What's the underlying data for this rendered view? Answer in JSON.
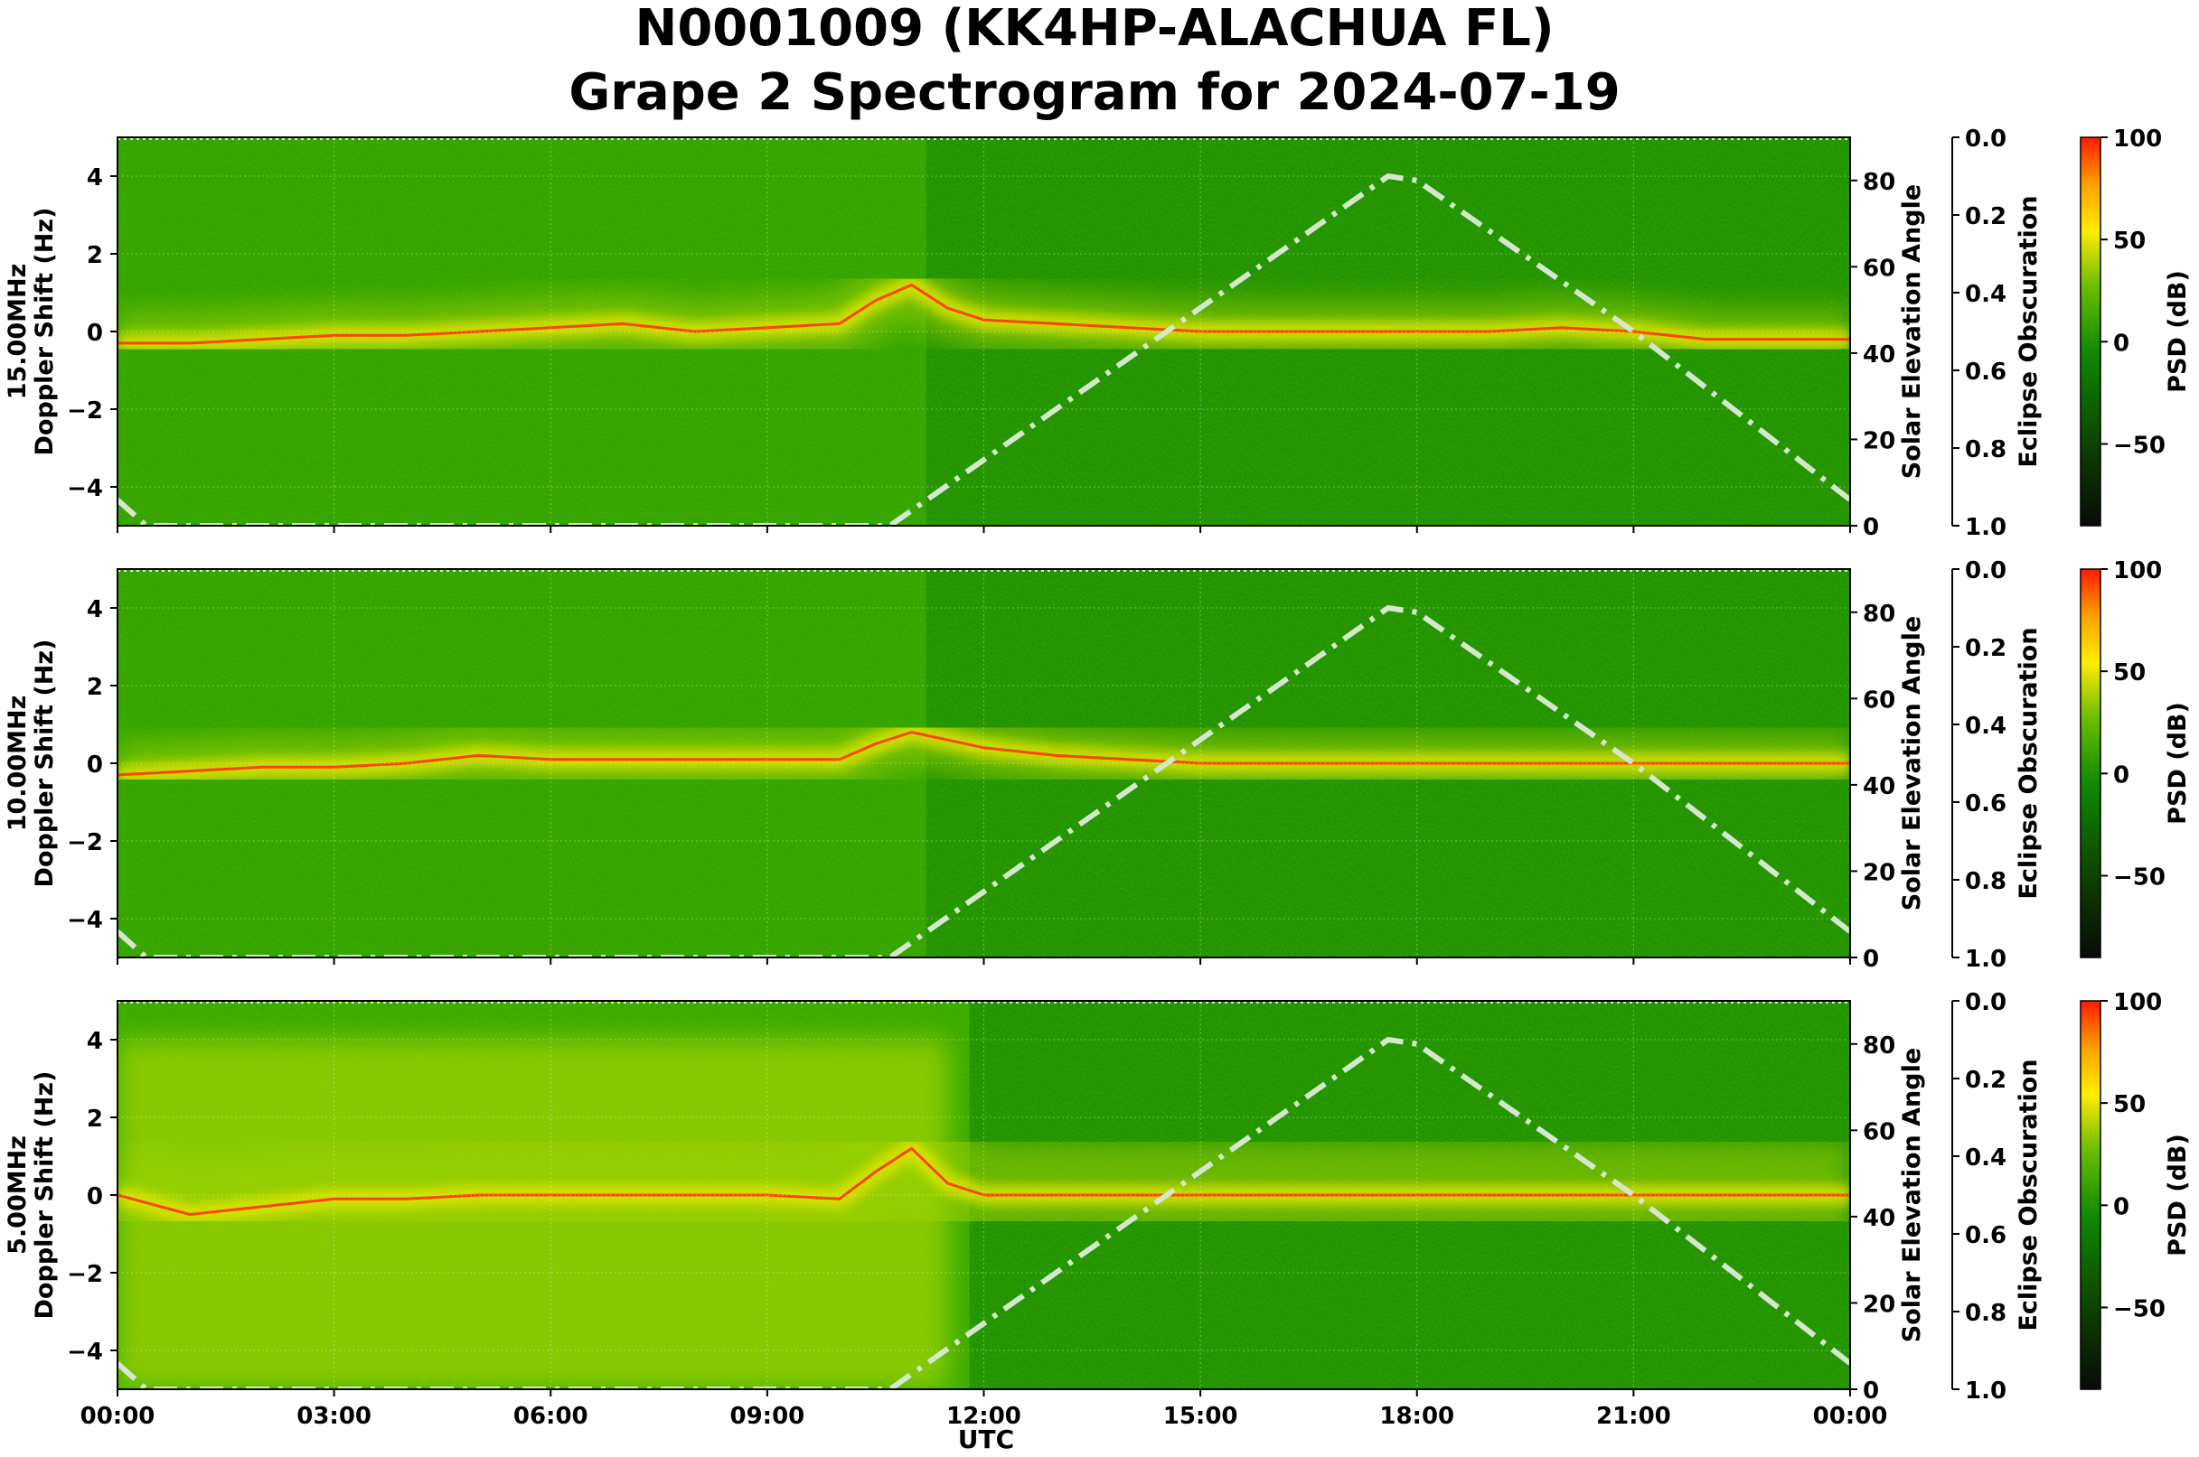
{
  "title_line1": "N0001009 (KK4HP-ALACHUA FL)",
  "title_line2": "Grape 2 Spectrogram for 2024-07-19",
  "xlabel": "UTC",
  "x_ticks": [
    "00:00",
    "03:00",
    "06:00",
    "09:00",
    "12:00",
    "15:00",
    "18:00",
    "21:00",
    "00:00"
  ],
  "y_ticks": [
    "4",
    "2",
    "0",
    "−2",
    "−4"
  ],
  "elev_ticks": [
    "80",
    "60",
    "40",
    "20",
    "0"
  ],
  "obsc_ticks": [
    "0.0",
    "0.2",
    "0.4",
    "0.6",
    "0.8",
    "1.0"
  ],
  "cbar_ticks": [
    "100",
    "50",
    "0",
    "−50"
  ],
  "right_label_elev": "Solar Elevation Angle",
  "right_label_obsc": "Eclipse Obscuration",
  "cbar_label": "PSD (dB)",
  "colors": {
    "bg_green": "#118a00",
    "mid_green": "#2fa500",
    "yellow_green": "#9fd200",
    "yellow": "#e6e600",
    "orange_red": "#ff3300",
    "elevation_curve": "#d4e8d0",
    "cmap": [
      "#0a0a0a",
      "#0b3a00",
      "#118a00",
      "#6cc000",
      "#ffee00",
      "#ffa000",
      "#ff1a00"
    ]
  },
  "chart_data": [
    {
      "type": "heatmap",
      "ylabel_freq": "15.00MHz",
      "ylabel": "Doppler Shift (Hz)",
      "xlim_hours": [
        0,
        24
      ],
      "ylim": [
        -5,
        5
      ],
      "elev_lim": [
        0,
        90
      ],
      "obsc_lim": [
        0,
        1
      ],
      "cbar_lim": [
        -90,
        100
      ],
      "doppler_trace": {
        "x": [
          0,
          1,
          2,
          3,
          4,
          5,
          6,
          7,
          8,
          9,
          10,
          10.5,
          11,
          11.5,
          12,
          13,
          14,
          15,
          16,
          17,
          18,
          19,
          20,
          21,
          22,
          23,
          24
        ],
        "y": [
          -0.3,
          -0.3,
          -0.2,
          -0.1,
          -0.1,
          0.0,
          0.1,
          0.2,
          0.0,
          0.1,
          0.2,
          0.8,
          1.2,
          0.6,
          0.3,
          0.2,
          0.1,
          0.0,
          0.0,
          0.0,
          0.0,
          0.0,
          0.1,
          0.0,
          -0.2,
          -0.2,
          -0.2
        ]
      },
      "elevation_curve": {
        "x": [
          0,
          0.4,
          10.7,
          17.6,
          18.0,
          21.0,
          24
        ],
        "y": [
          6,
          0,
          0,
          81,
          80,
          45,
          6
        ]
      }
    },
    {
      "type": "heatmap",
      "ylabel_freq": "10.00MHz",
      "ylabel": "Doppler Shift (Hz)",
      "xlim_hours": [
        0,
        24
      ],
      "ylim": [
        -5,
        5
      ],
      "elev_lim": [
        0,
        90
      ],
      "obsc_lim": [
        0,
        1
      ],
      "cbar_lim": [
        -90,
        100
      ],
      "doppler_trace": {
        "x": [
          0,
          1,
          2,
          3,
          4,
          5,
          6,
          7,
          8,
          9,
          10,
          10.5,
          11,
          11.5,
          12,
          13,
          14,
          15,
          16,
          17,
          18,
          19,
          20,
          21,
          22,
          23,
          24
        ],
        "y": [
          -0.3,
          -0.2,
          -0.1,
          -0.1,
          0.0,
          0.2,
          0.1,
          0.1,
          0.1,
          0.1,
          0.1,
          0.5,
          0.8,
          0.6,
          0.4,
          0.2,
          0.1,
          0.0,
          0.0,
          0.0,
          0.0,
          0.0,
          0.0,
          0.0,
          0.0,
          0.0,
          0.0
        ]
      },
      "elevation_curve": {
        "x": [
          0,
          0.4,
          10.7,
          17.6,
          18.0,
          21.0,
          24
        ],
        "y": [
          6,
          0,
          0,
          81,
          80,
          45,
          6
        ]
      }
    },
    {
      "type": "heatmap",
      "ylabel_freq": "5.00MHz",
      "ylabel": "Doppler Shift (Hz)",
      "xlim_hours": [
        0,
        24
      ],
      "ylim": [
        -5,
        5
      ],
      "elev_lim": [
        0,
        90
      ],
      "obsc_lim": [
        0,
        1
      ],
      "cbar_lim": [
        -90,
        100
      ],
      "doppler_trace": {
        "x": [
          0,
          1,
          2,
          3,
          4,
          5,
          6,
          7,
          8,
          9,
          10,
          10.5,
          11,
          11.5,
          12,
          13,
          14,
          15,
          16,
          17,
          18,
          19,
          20,
          21,
          22,
          23,
          24
        ],
        "y": [
          0.0,
          -0.5,
          -0.3,
          -0.1,
          -0.1,
          0.0,
          0.0,
          0.0,
          0.0,
          0.0,
          -0.1,
          0.6,
          1.2,
          0.3,
          0.0,
          0.0,
          0.0,
          0.0,
          0.0,
          0.0,
          0.0,
          0.0,
          0.0,
          0.0,
          0.0,
          0.0,
          0.0
        ]
      },
      "elevation_curve": {
        "x": [
          0,
          0.4,
          10.7,
          17.6,
          18.0,
          21.0,
          24
        ],
        "y": [
          6,
          0,
          0,
          81,
          80,
          45,
          6
        ]
      }
    }
  ]
}
